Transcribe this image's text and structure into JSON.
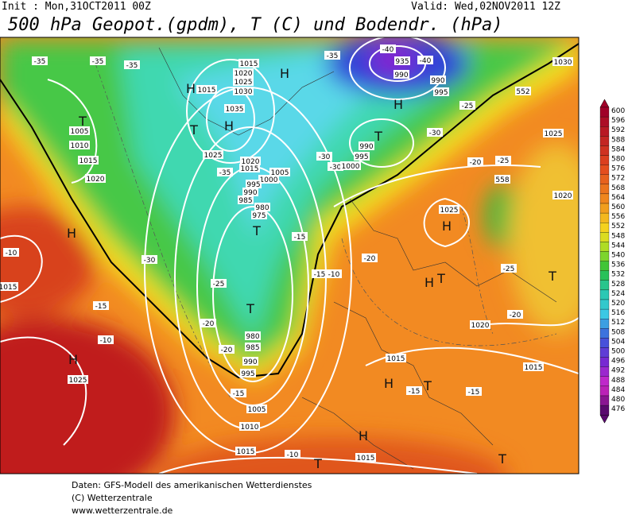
{
  "header": {
    "init": "Init : Mon,31OCT2011 00Z",
    "valid": "Valid: Wed,02NOV2011 12Z",
    "title": "500 hPa Geopot.(gpdm), T (C) und Bodendr. (hPa)"
  },
  "colorbar": {
    "levels": [
      600,
      596,
      592,
      588,
      584,
      580,
      576,
      572,
      568,
      564,
      560,
      556,
      552,
      548,
      544,
      540,
      536,
      532,
      528,
      524,
      520,
      516,
      512,
      508,
      504,
      500,
      496,
      492,
      488,
      484,
      480,
      476
    ]
  },
  "map": {
    "labels": [
      "-35",
      "-35",
      "-35",
      "-35",
      "1015",
      "1020",
      "1025",
      "1030",
      "H",
      "H",
      "1015",
      "1035",
      "H",
      "T",
      "T",
      "1005",
      "1010",
      "1015",
      "1020",
      "1025",
      "1020",
      "1015",
      "-35",
      "1005",
      "1000",
      "995",
      "990",
      "985",
      "980",
      "975",
      "T",
      "-30",
      "-30",
      "1000",
      "995",
      "990",
      "T",
      "H",
      "-40",
      "935",
      "990",
      "-40",
      "990",
      "995",
      "1030",
      "-25",
      "-30",
      "1025",
      "-20",
      "-25",
      "558",
      "1025",
      "H",
      "1020",
      "H",
      "-30",
      "-20",
      "-25",
      "T",
      "H",
      "T",
      "-15",
      "-15",
      "-10",
      "-25",
      "T",
      "-20",
      "980",
      "985",
      "-20",
      "990",
      "995",
      "-15",
      "1005",
      "1010",
      "1015",
      "-10",
      "-15",
      "-10",
      "H",
      "1025",
      "1015",
      "-10",
      "1020",
      "-20",
      "1015",
      "1015",
      "H",
      "-15",
      "T",
      "-15",
      "H",
      "T",
      "1015",
      "T",
      "552"
    ]
  },
  "footer": {
    "lines": [
      "Daten: GFS-Modell des amerikanischen Wetterdienstes",
      "(C) Wetterzentrale",
      "www.wetterzentrale.de"
    ]
  }
}
